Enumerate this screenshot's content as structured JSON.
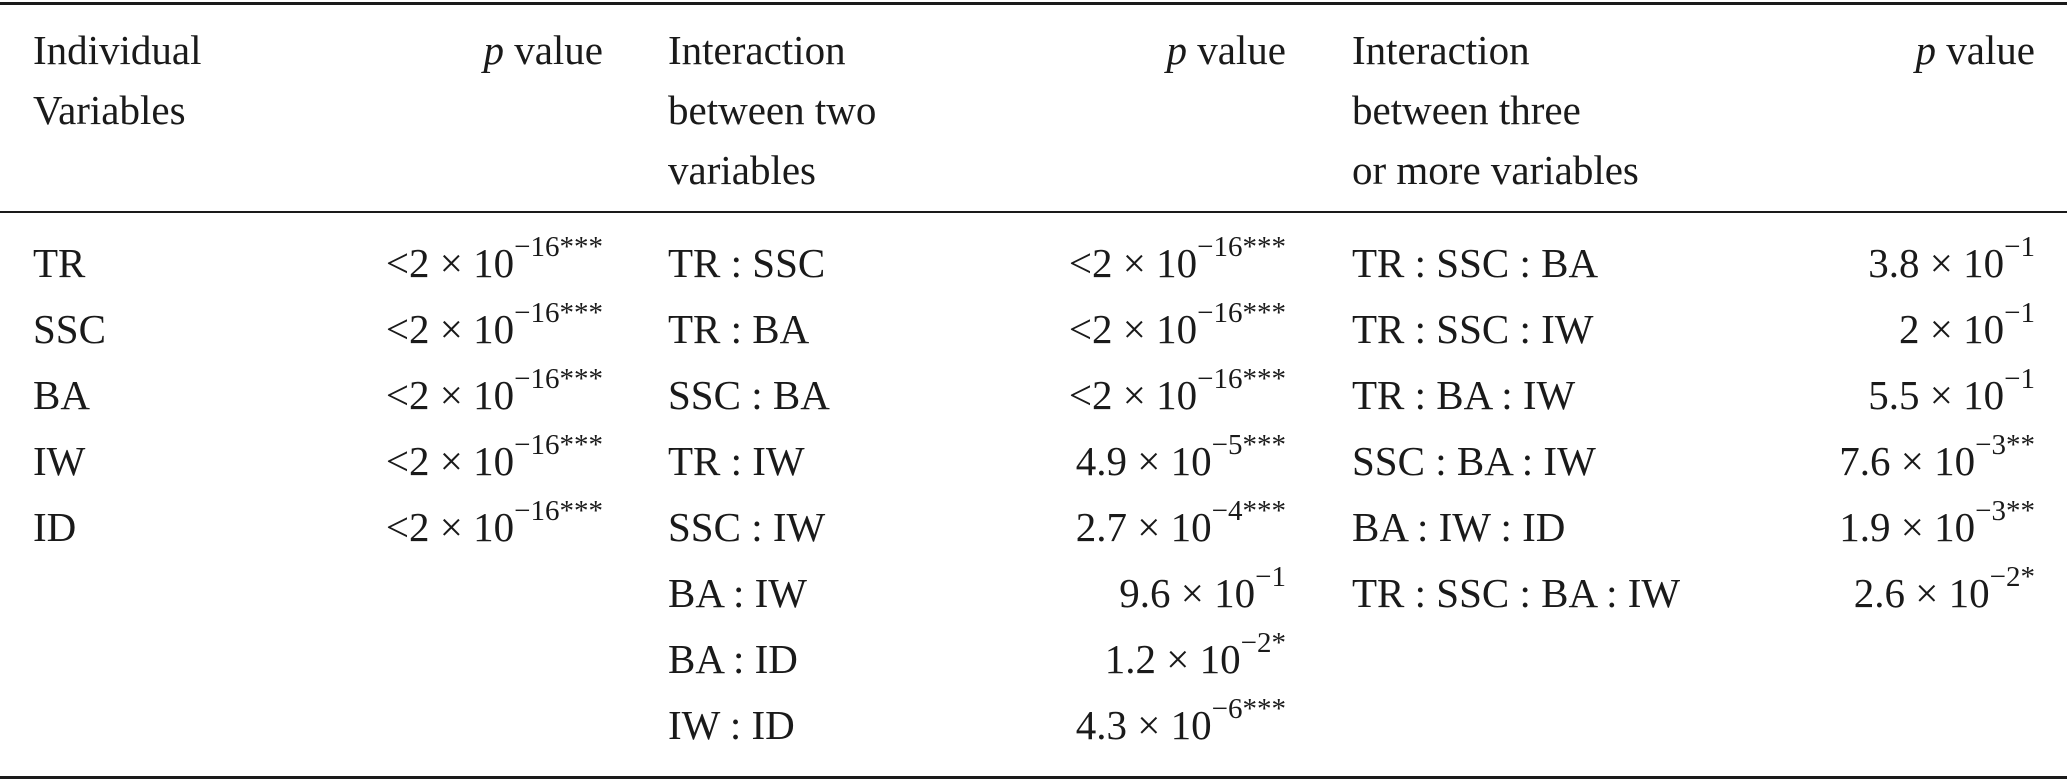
{
  "columns": [
    {
      "name_header": [
        "Individual",
        "Variables"
      ],
      "value_header_italic": "p",
      "value_header_rest": " value"
    },
    {
      "name_header": [
        "Interaction",
        "between two",
        "variables"
      ],
      "value_header_italic": "p",
      "value_header_rest": " value"
    },
    {
      "name_header": [
        "Interaction",
        "between three",
        "or more variables"
      ],
      "value_header_italic": "p",
      "value_header_rest": " value"
    }
  ],
  "rows_individual": [
    {
      "name": "TR",
      "prefix": "<",
      "mant": "2",
      "exp": "−16",
      "stars": "***"
    },
    {
      "name": "SSC",
      "prefix": "<",
      "mant": "2",
      "exp": "−16",
      "stars": "***"
    },
    {
      "name": "BA",
      "prefix": "<",
      "mant": "2",
      "exp": "−16",
      "stars": "***"
    },
    {
      "name": "IW",
      "prefix": "<",
      "mant": "2",
      "exp": "−16",
      "stars": "***"
    },
    {
      "name": "ID",
      "prefix": "<",
      "mant": "2",
      "exp": "−16",
      "stars": "***"
    }
  ],
  "rows_two": [
    {
      "name": "TR : SSC",
      "prefix": "<",
      "mant": "2",
      "exp": "−16",
      "stars": "***"
    },
    {
      "name": "TR : BA",
      "prefix": "<",
      "mant": "2",
      "exp": "−16",
      "stars": "***"
    },
    {
      "name": "SSC : BA",
      "prefix": "<",
      "mant": "2",
      "exp": "−16",
      "stars": "***"
    },
    {
      "name": "TR : IW",
      "prefix": "",
      "mant": "4.9",
      "exp": "−5",
      "stars": "***"
    },
    {
      "name": "SSC : IW",
      "prefix": "",
      "mant": "2.7",
      "exp": "−4",
      "stars": "***"
    },
    {
      "name": "BA : IW",
      "prefix": "",
      "mant": "9.6",
      "exp": "−1",
      "stars": ""
    },
    {
      "name": "BA : ID",
      "prefix": "",
      "mant": "1.2",
      "exp": "−2",
      "stars": "*"
    },
    {
      "name": "IW : ID",
      "prefix": "",
      "mant": "4.3",
      "exp": "−6",
      "stars": "***"
    }
  ],
  "rows_three": [
    {
      "name": "TR : SSC : BA",
      "prefix": "",
      "mant": "3.8",
      "exp": "−1",
      "stars": ""
    },
    {
      "name": "TR : SSC : IW",
      "prefix": "",
      "mant": "2",
      "exp": "−1",
      "stars": ""
    },
    {
      "name": "TR : BA : IW",
      "prefix": "",
      "mant": "5.5",
      "exp": "−1",
      "stars": ""
    },
    {
      "name": "SSC : BA : IW",
      "prefix": "",
      "mant": "7.6",
      "exp": "−3",
      "stars": "**"
    },
    {
      "name": "BA : IW : ID",
      "prefix": "",
      "mant": "1.9",
      "exp": "−3",
      "stars": "**"
    },
    {
      "name": "TR : SSC : BA : IW",
      "prefix": "",
      "mant": "2.6",
      "exp": "−2",
      "stars": "*"
    }
  ],
  "times_symbol": "×",
  "base": "10"
}
